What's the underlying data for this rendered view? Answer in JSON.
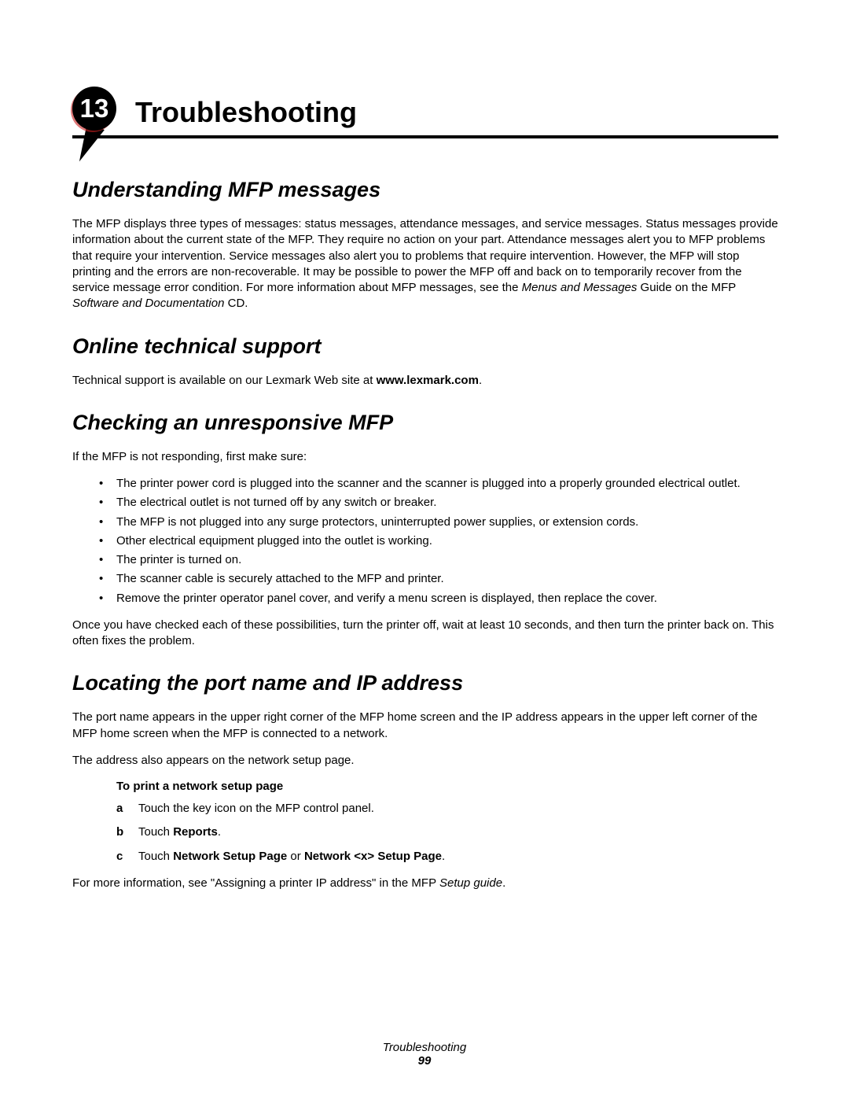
{
  "chapter": {
    "number": "13",
    "title": "Troubleshooting"
  },
  "sections": {
    "understanding": {
      "heading": "Understanding MFP messages",
      "body_part1": "The MFP displays three types of messages: status messages, attendance messages, and service messages. Status messages provide information about the current state of the MFP. They require no action on your part. Attendance messages alert you to MFP problems that require your intervention. Service messages also alert you to problems that require intervention. However, the MFP will stop printing and the errors are non-recoverable. It may be possible to power the MFP off and back on to temporarily recover from the service message error condition. For more information about MFP messages, see the ",
      "body_italic1": "Menus and Messages",
      "body_part2": " Guide on the MFP ",
      "body_italic2": "Software and Documentation",
      "body_part3": " CD."
    },
    "online": {
      "heading": "Online technical support",
      "body_part1": "Technical support is available on our Lexmark Web site at ",
      "body_bold": "www.lexmark.com",
      "body_part2": "."
    },
    "checking": {
      "heading": "Checking an unresponsive MFP",
      "intro": "If the MFP is not responding, first make sure:",
      "bullets": [
        "The printer power cord is plugged into the scanner and the scanner is plugged into a properly grounded electrical outlet.",
        "The electrical outlet is not turned off by any switch or breaker.",
        "The MFP is not plugged into any surge protectors, uninterrupted power supplies, or extension cords.",
        "Other electrical equipment plugged into the outlet is working.",
        "The printer is turned on.",
        "The scanner cable is securely attached to the MFP and printer.",
        "Remove the printer operator panel cover, and verify a menu screen is displayed, then replace the cover."
      ],
      "outro": "Once you have checked each of these possibilities, turn the printer off, wait at least 10 seconds, and then turn the printer back on. This often fixes the problem."
    },
    "locating": {
      "heading": "Locating the port name and IP address",
      "p1": "The port name appears in the upper right corner of the MFP home screen and the IP address appears in the upper left corner of the MFP home screen when the MFP is connected to a network.",
      "p2": "The address also appears on the network setup page.",
      "sub_heading": "To print a network setup page",
      "steps": {
        "a": {
          "marker": "a",
          "text": "Touch the key icon on the MFP control panel."
        },
        "b": {
          "marker": "b",
          "pre": "Touch ",
          "bold": "Reports",
          "post": "."
        },
        "c": {
          "marker": "c",
          "pre": "Touch ",
          "bold1": "Network Setup Page",
          "mid": " or ",
          "bold2": "Network <x> Setup Page",
          "post": "."
        }
      },
      "outro_pre": "For more information, see \"Assigning a printer IP address\" in the MFP ",
      "outro_italic": "Setup guide",
      "outro_post": "."
    }
  },
  "footer": {
    "title": "Troubleshooting",
    "page": "99"
  }
}
